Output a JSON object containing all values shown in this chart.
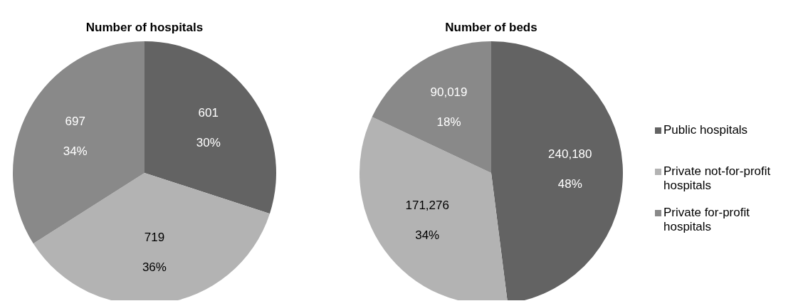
{
  "chart_data": [
    {
      "type": "pie",
      "title": "Number of hospitals",
      "categories": [
        null,
        null,
        null
      ],
      "values": [
        30,
        36,
        34
      ],
      "value_labels": [
        "601\n30%",
        "719\n36%",
        "697\n34%"
      ],
      "colors": [
        "#636363",
        "#b3b3b3",
        "#898989"
      ]
    },
    {
      "type": "pie",
      "title": "Number of beds",
      "categories": [
        "Public hospitals",
        "Private not-for-profit hospitals",
        "Private for-profit hospitals"
      ],
      "values": [
        48,
        34,
        18
      ],
      "value_labels": [
        "240,180\n48%",
        "171,276\n34%",
        "90,019\n18%"
      ],
      "colors": [
        "#636363",
        "#b3b3b3",
        "#898989"
      ],
      "legend": "right"
    }
  ]
}
